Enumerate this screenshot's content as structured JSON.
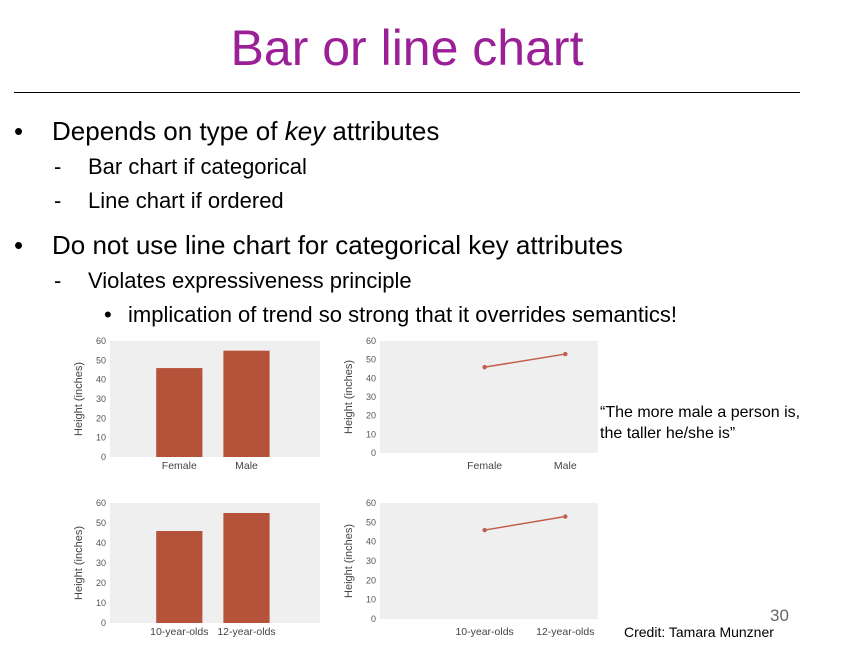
{
  "slide": {
    "title": "Bar or line chart",
    "bullets": [
      {
        "prefix": "Depends on type of ",
        "emph": "key",
        "suffix": " attributes",
        "subs": [
          "Bar chart if categorical",
          "Line chart if ordered"
        ]
      },
      {
        "text": "Do not use line chart for categorical key attributes",
        "subs": [
          "Violates expressiveness principle"
        ],
        "subsubs": [
          "implication of trend so strong that it overrides semantics!"
        ]
      }
    ],
    "quote_lines": [
      "“The more male a person is,",
      "the taller he/she is”"
    ],
    "page_number": "30",
    "credit": "Credit: Tamara Munzner"
  },
  "style": {
    "title_color": "#9b1f96",
    "bar_color": "#b5533a",
    "line_color": "#c0604a",
    "panel_bg": "#efefef"
  },
  "chart_data": [
    {
      "type": "bar",
      "categories": [
        "Female",
        "Male"
      ],
      "values": [
        46,
        55
      ],
      "ylabel": "Height (inches)",
      "ylim": [
        0,
        60
      ],
      "yticks": [
        0,
        10,
        20,
        30,
        40,
        50,
        60
      ],
      "grid": false
    },
    {
      "type": "line",
      "categories": [
        "Female",
        "Male"
      ],
      "values": [
        46,
        53
      ],
      "ylabel": "Height (inches)",
      "ylim": [
        0,
        60
      ],
      "yticks": [
        0,
        10,
        20,
        30,
        40,
        50,
        60
      ],
      "grid": false
    },
    {
      "type": "bar",
      "categories": [
        "10-year-olds",
        "12-year-olds"
      ],
      "values": [
        46,
        55
      ],
      "ylabel": "Height (inches)",
      "ylim": [
        0,
        60
      ],
      "yticks": [
        0,
        10,
        20,
        30,
        40,
        50,
        60
      ],
      "grid": false
    },
    {
      "type": "line",
      "categories": [
        "10-year-olds",
        "12-year-olds"
      ],
      "values": [
        46,
        53
      ],
      "ylabel": "Height (inches)",
      "ylim": [
        0,
        60
      ],
      "yticks": [
        0,
        10,
        20,
        30,
        40,
        50,
        60
      ],
      "grid": false
    }
  ]
}
